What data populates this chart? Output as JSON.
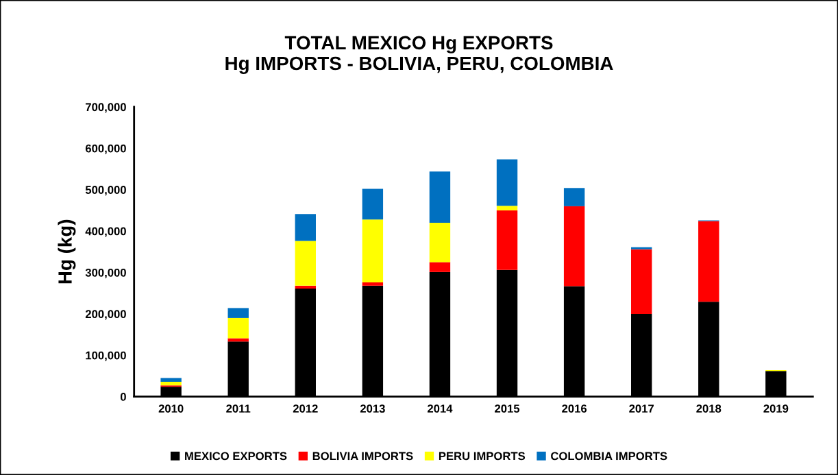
{
  "chart_data": {
    "type": "bar",
    "title": "TOTAL MEXICO Hg EXPORTS\nHg IMPORTS - BOLIVIA, PERU, COLOMBIA",
    "ylabel": "Hg (kg)",
    "categories": [
      "2010",
      "2011",
      "2012",
      "2013",
      "2014",
      "2015",
      "2016",
      "2017",
      "2018",
      "2019"
    ],
    "stacked": true,
    "legend": "bottom",
    "grid": false,
    "series": [
      {
        "name": "MEXICO EXPORTS",
        "color": "#000000",
        "values": [
          24000,
          133000,
          261000,
          268000,
          301000,
          306000,
          267000,
          200000,
          229000,
          62000
        ]
      },
      {
        "name": "BOLIVIA IMPORTS",
        "color": "#ff0000",
        "values": [
          3000,
          8000,
          7000,
          8000,
          24000,
          144000,
          193000,
          156000,
          195000,
          null
        ]
      },
      {
        "name": "PERU IMPORTS",
        "color": "#ffff00",
        "values": [
          9000,
          49000,
          108000,
          152000,
          95000,
          11000,
          null,
          null,
          null,
          2000
        ]
      },
      {
        "name": "COLOMBIA IMPORTS",
        "color": "#0070c0",
        "values": [
          9000,
          24000,
          65000,
          74000,
          124000,
          112000,
          44000,
          5000,
          2000,
          null
        ]
      }
    ],
    "ylim": [
      0,
      700000
    ],
    "yticks": [
      {
        "value": 0,
        "label": "0"
      },
      {
        "value": 100000,
        "label": "100,000"
      },
      {
        "value": 200000,
        "label": "200,000"
      },
      {
        "value": 300000,
        "label": "300,000"
      },
      {
        "value": 400000,
        "label": "400,000"
      },
      {
        "value": 500000,
        "label": "500,000"
      },
      {
        "value": 600000,
        "label": "600,000"
      },
      {
        "value": 700000,
        "label": "700,000"
      }
    ]
  }
}
